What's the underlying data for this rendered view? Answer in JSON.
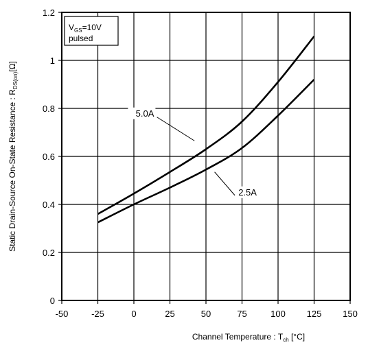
{
  "chart_data": {
    "type": "line",
    "xlabel": {
      "main": "Channel Temperature :  T",
      "sub": "ch",
      "unit": " [°C]"
    },
    "ylabel": {
      "main": "Static Drain-Source On-State Resistance :  R",
      "sub": "DS(on)",
      "unit": "[Ω]"
    },
    "xlim": [
      -50,
      150
    ],
    "ylim": [
      0,
      1.2
    ],
    "x_ticks": [
      "-50",
      "-25",
      "0",
      "25",
      "50",
      "75",
      "100",
      "125",
      "150"
    ],
    "y_ticks": [
      "0",
      "0.2",
      "0.4",
      "0.6",
      "0.8",
      "1",
      "1.2"
    ],
    "grid": true,
    "legend": {
      "position": "top-left",
      "line1_main": "V",
      "line1_sub": "GS",
      "line1_rest": "=10V",
      "line2": "pulsed"
    },
    "series": [
      {
        "name": "5.0A",
        "x": [
          -25,
          0,
          25,
          50,
          75,
          100,
          125
        ],
        "y": [
          0.36,
          0.445,
          0.535,
          0.63,
          0.745,
          0.91,
          1.1
        ]
      },
      {
        "name": "2.5A",
        "x": [
          -25,
          0,
          25,
          50,
          75,
          100,
          125
        ],
        "y": [
          0.325,
          0.4,
          0.47,
          0.545,
          0.635,
          0.77,
          0.92
        ]
      }
    ]
  }
}
